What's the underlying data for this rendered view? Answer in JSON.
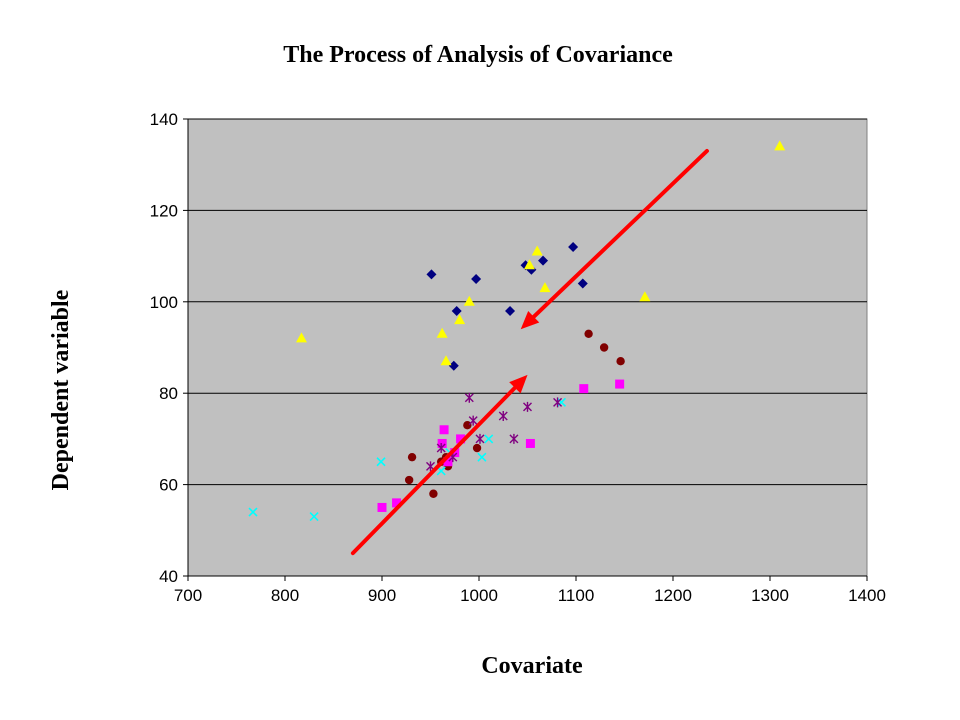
{
  "chart_data": {
    "type": "scatter",
    "title": "The Process of Analysis of Covariance",
    "xlabel": "Covariate",
    "ylabel": "Dependent variable",
    "xlim": [
      700,
      1400
    ],
    "ylim": [
      40,
      140
    ],
    "xticks": [
      700,
      800,
      900,
      1000,
      1100,
      1200,
      1300,
      1400
    ],
    "yticks": [
      40,
      60,
      80,
      100,
      120,
      140
    ],
    "grid": "horizontal",
    "plot_background": "#c0c0c0",
    "series": [
      {
        "marker": "diamond",
        "color": "#000080",
        "points": [
          [
            951,
            106
          ],
          [
            977,
            98
          ],
          [
            997,
            105
          ],
          [
            974,
            86
          ],
          [
            1032,
            98
          ],
          [
            1048,
            108
          ],
          [
            1054,
            107
          ],
          [
            1066,
            109
          ],
          [
            1097,
            112
          ],
          [
            1107,
            104
          ]
        ]
      },
      {
        "marker": "triangle",
        "color": "#ffff00",
        "points": [
          [
            817,
            92
          ],
          [
            962,
            93
          ],
          [
            966,
            87
          ],
          [
            980,
            96
          ],
          [
            990,
            100
          ],
          [
            1052,
            108
          ],
          [
            1060,
            111
          ],
          [
            1068,
            103
          ],
          [
            1171,
            101
          ],
          [
            1310,
            134
          ]
        ]
      },
      {
        "marker": "circle",
        "color": "#800000",
        "points": [
          [
            928,
            61
          ],
          [
            931,
            66
          ],
          [
            953,
            58
          ],
          [
            961,
            65
          ],
          [
            966,
            66
          ],
          [
            968,
            64
          ],
          [
            988,
            73
          ],
          [
            998,
            68
          ],
          [
            1113,
            93
          ],
          [
            1129,
            90
          ],
          [
            1146,
            87
          ]
        ]
      },
      {
        "marker": "square",
        "color": "#ff00ff",
        "points": [
          [
            900,
            55
          ],
          [
            915,
            56
          ],
          [
            962,
            69
          ],
          [
            964,
            72
          ],
          [
            968,
            65
          ],
          [
            975,
            67
          ],
          [
            981,
            70
          ],
          [
            1053,
            69
          ],
          [
            1108,
            81
          ],
          [
            1145,
            82
          ]
        ]
      },
      {
        "marker": "x",
        "color": "#00ffff",
        "points": [
          [
            767,
            54
          ],
          [
            830,
            53
          ],
          [
            899,
            65
          ],
          [
            961,
            63
          ],
          [
            970,
            67
          ],
          [
            1003,
            66
          ],
          [
            1010,
            70
          ],
          [
            1085,
            78
          ]
        ]
      },
      {
        "marker": "star",
        "color": "#800080",
        "points": [
          [
            950,
            64
          ],
          [
            961,
            68
          ],
          [
            973,
            66
          ],
          [
            990,
            79
          ],
          [
            994,
            74
          ],
          [
            1001,
            70
          ],
          [
            1025,
            75
          ],
          [
            1036,
            70
          ],
          [
            1050,
            77
          ],
          [
            1081,
            78
          ]
        ]
      }
    ],
    "annotations": [
      {
        "type": "arrow",
        "color": "#ff0000",
        "from": [
          870,
          45
        ],
        "to": [
          1050,
          84
        ]
      },
      {
        "type": "arrow",
        "color": "#ff0000",
        "from": [
          1235,
          133
        ],
        "to": [
          1043,
          94
        ]
      }
    ]
  }
}
